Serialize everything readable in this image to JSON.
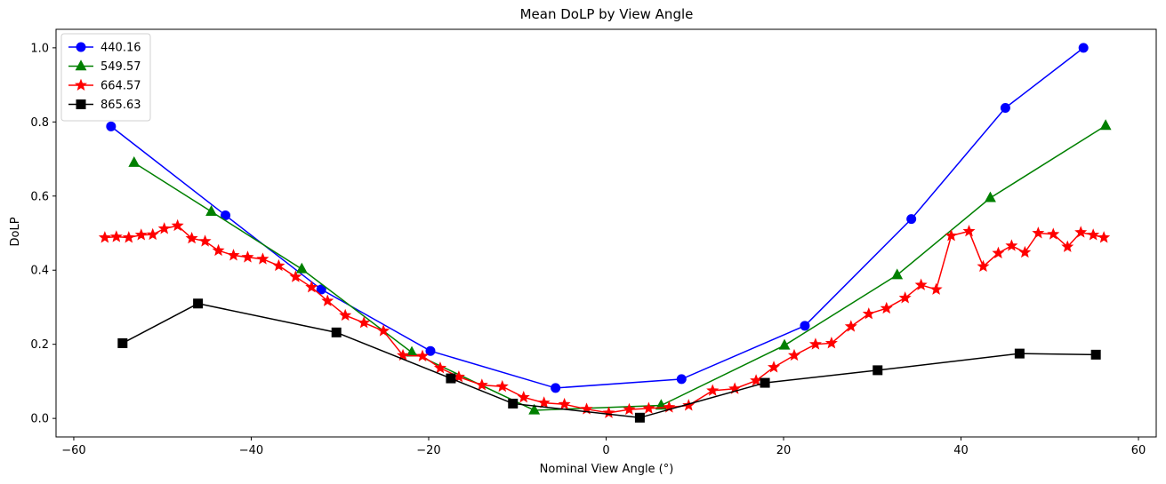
{
  "chart_data": {
    "type": "line",
    "title": "Mean DoLP by View Angle",
    "xlabel": "Nominal View Angle (°)",
    "ylabel": "DoLP",
    "xlim": [
      -62,
      62
    ],
    "ylim": [
      -0.05,
      1.05
    ],
    "xticks": [
      -60,
      -40,
      -20,
      0,
      20,
      40,
      60
    ],
    "yticks": [
      0.0,
      0.2,
      0.4,
      0.6,
      0.8,
      1.0
    ],
    "xtick_labels": [
      "−60",
      "−40",
      "−20",
      "0",
      "20",
      "40",
      "60"
    ],
    "ytick_labels": [
      "0.0",
      "0.2",
      "0.4",
      "0.6",
      "0.8",
      "1.0"
    ],
    "grid": false,
    "legend_position": "top-left",
    "series": [
      {
        "name": "440.16",
        "color": "#0000ff",
        "marker": "circle",
        "x": [
          -55.8,
          -42.9,
          -32.1,
          -19.8,
          -5.7,
          8.5,
          22.4,
          34.4,
          45.0,
          53.8
        ],
        "y": [
          0.788,
          0.548,
          0.348,
          0.182,
          0.082,
          0.106,
          0.25,
          0.538,
          0.838,
          1.0
        ]
      },
      {
        "name": "549.57",
        "color": "#008000",
        "marker": "triangle",
        "x": [
          -53.2,
          -44.5,
          -34.3,
          -21.9,
          -8.1,
          6.2,
          20.1,
          32.8,
          43.3,
          56.3
        ],
        "y": [
          0.69,
          0.558,
          0.403,
          0.178,
          0.022,
          0.035,
          0.197,
          0.387,
          0.595,
          0.79
        ]
      },
      {
        "name": "664.57",
        "color": "#ff0000",
        "marker": "star",
        "x": [
          -56.5,
          -55.2,
          -53.8,
          -52.4,
          -51.1,
          -49.8,
          -48.3,
          -46.7,
          -45.2,
          -43.7,
          -42.0,
          -40.4,
          -38.7,
          -36.9,
          -35.0,
          -33.2,
          -31.4,
          -29.4,
          -27.3,
          -25.1,
          -22.9,
          -20.7,
          -18.7,
          -16.6,
          -14.0,
          -11.7,
          -9.3,
          -7.0,
          -4.7,
          -2.2,
          0.3,
          2.6,
          4.8,
          7.1,
          9.3,
          12.0,
          14.5,
          16.9,
          18.9,
          21.2,
          23.6,
          25.4,
          27.6,
          29.6,
          31.6,
          33.7,
          35.5,
          37.2,
          38.9,
          40.9,
          42.5,
          44.2,
          45.7,
          47.2,
          48.7,
          50.4,
          52.0,
          53.5,
          54.9,
          56.1
        ],
        "y": [
          0.488,
          0.49,
          0.488,
          0.495,
          0.496,
          0.512,
          0.52,
          0.486,
          0.478,
          0.453,
          0.44,
          0.435,
          0.43,
          0.412,
          0.382,
          0.354,
          0.317,
          0.278,
          0.258,
          0.236,
          0.17,
          0.168,
          0.136,
          0.112,
          0.09,
          0.086,
          0.057,
          0.042,
          0.038,
          0.025,
          0.015,
          0.024,
          0.027,
          0.03,
          0.035,
          0.075,
          0.08,
          0.102,
          0.138,
          0.17,
          0.2,
          0.203,
          0.248,
          0.282,
          0.297,
          0.325,
          0.36,
          0.348,
          0.493,
          0.505,
          0.41,
          0.446,
          0.466,
          0.448,
          0.5,
          0.497,
          0.463,
          0.502,
          0.495,
          0.488
        ]
      },
      {
        "name": "865.63",
        "color": "#000000",
        "marker": "square",
        "x": [
          -54.5,
          -46.0,
          -30.4,
          -17.5,
          -10.5,
          3.8,
          17.9,
          30.6,
          46.6,
          55.2
        ],
        "y": [
          0.203,
          0.31,
          0.232,
          0.108,
          0.04,
          0.002,
          0.096,
          0.13,
          0.175,
          0.172
        ]
      }
    ]
  }
}
